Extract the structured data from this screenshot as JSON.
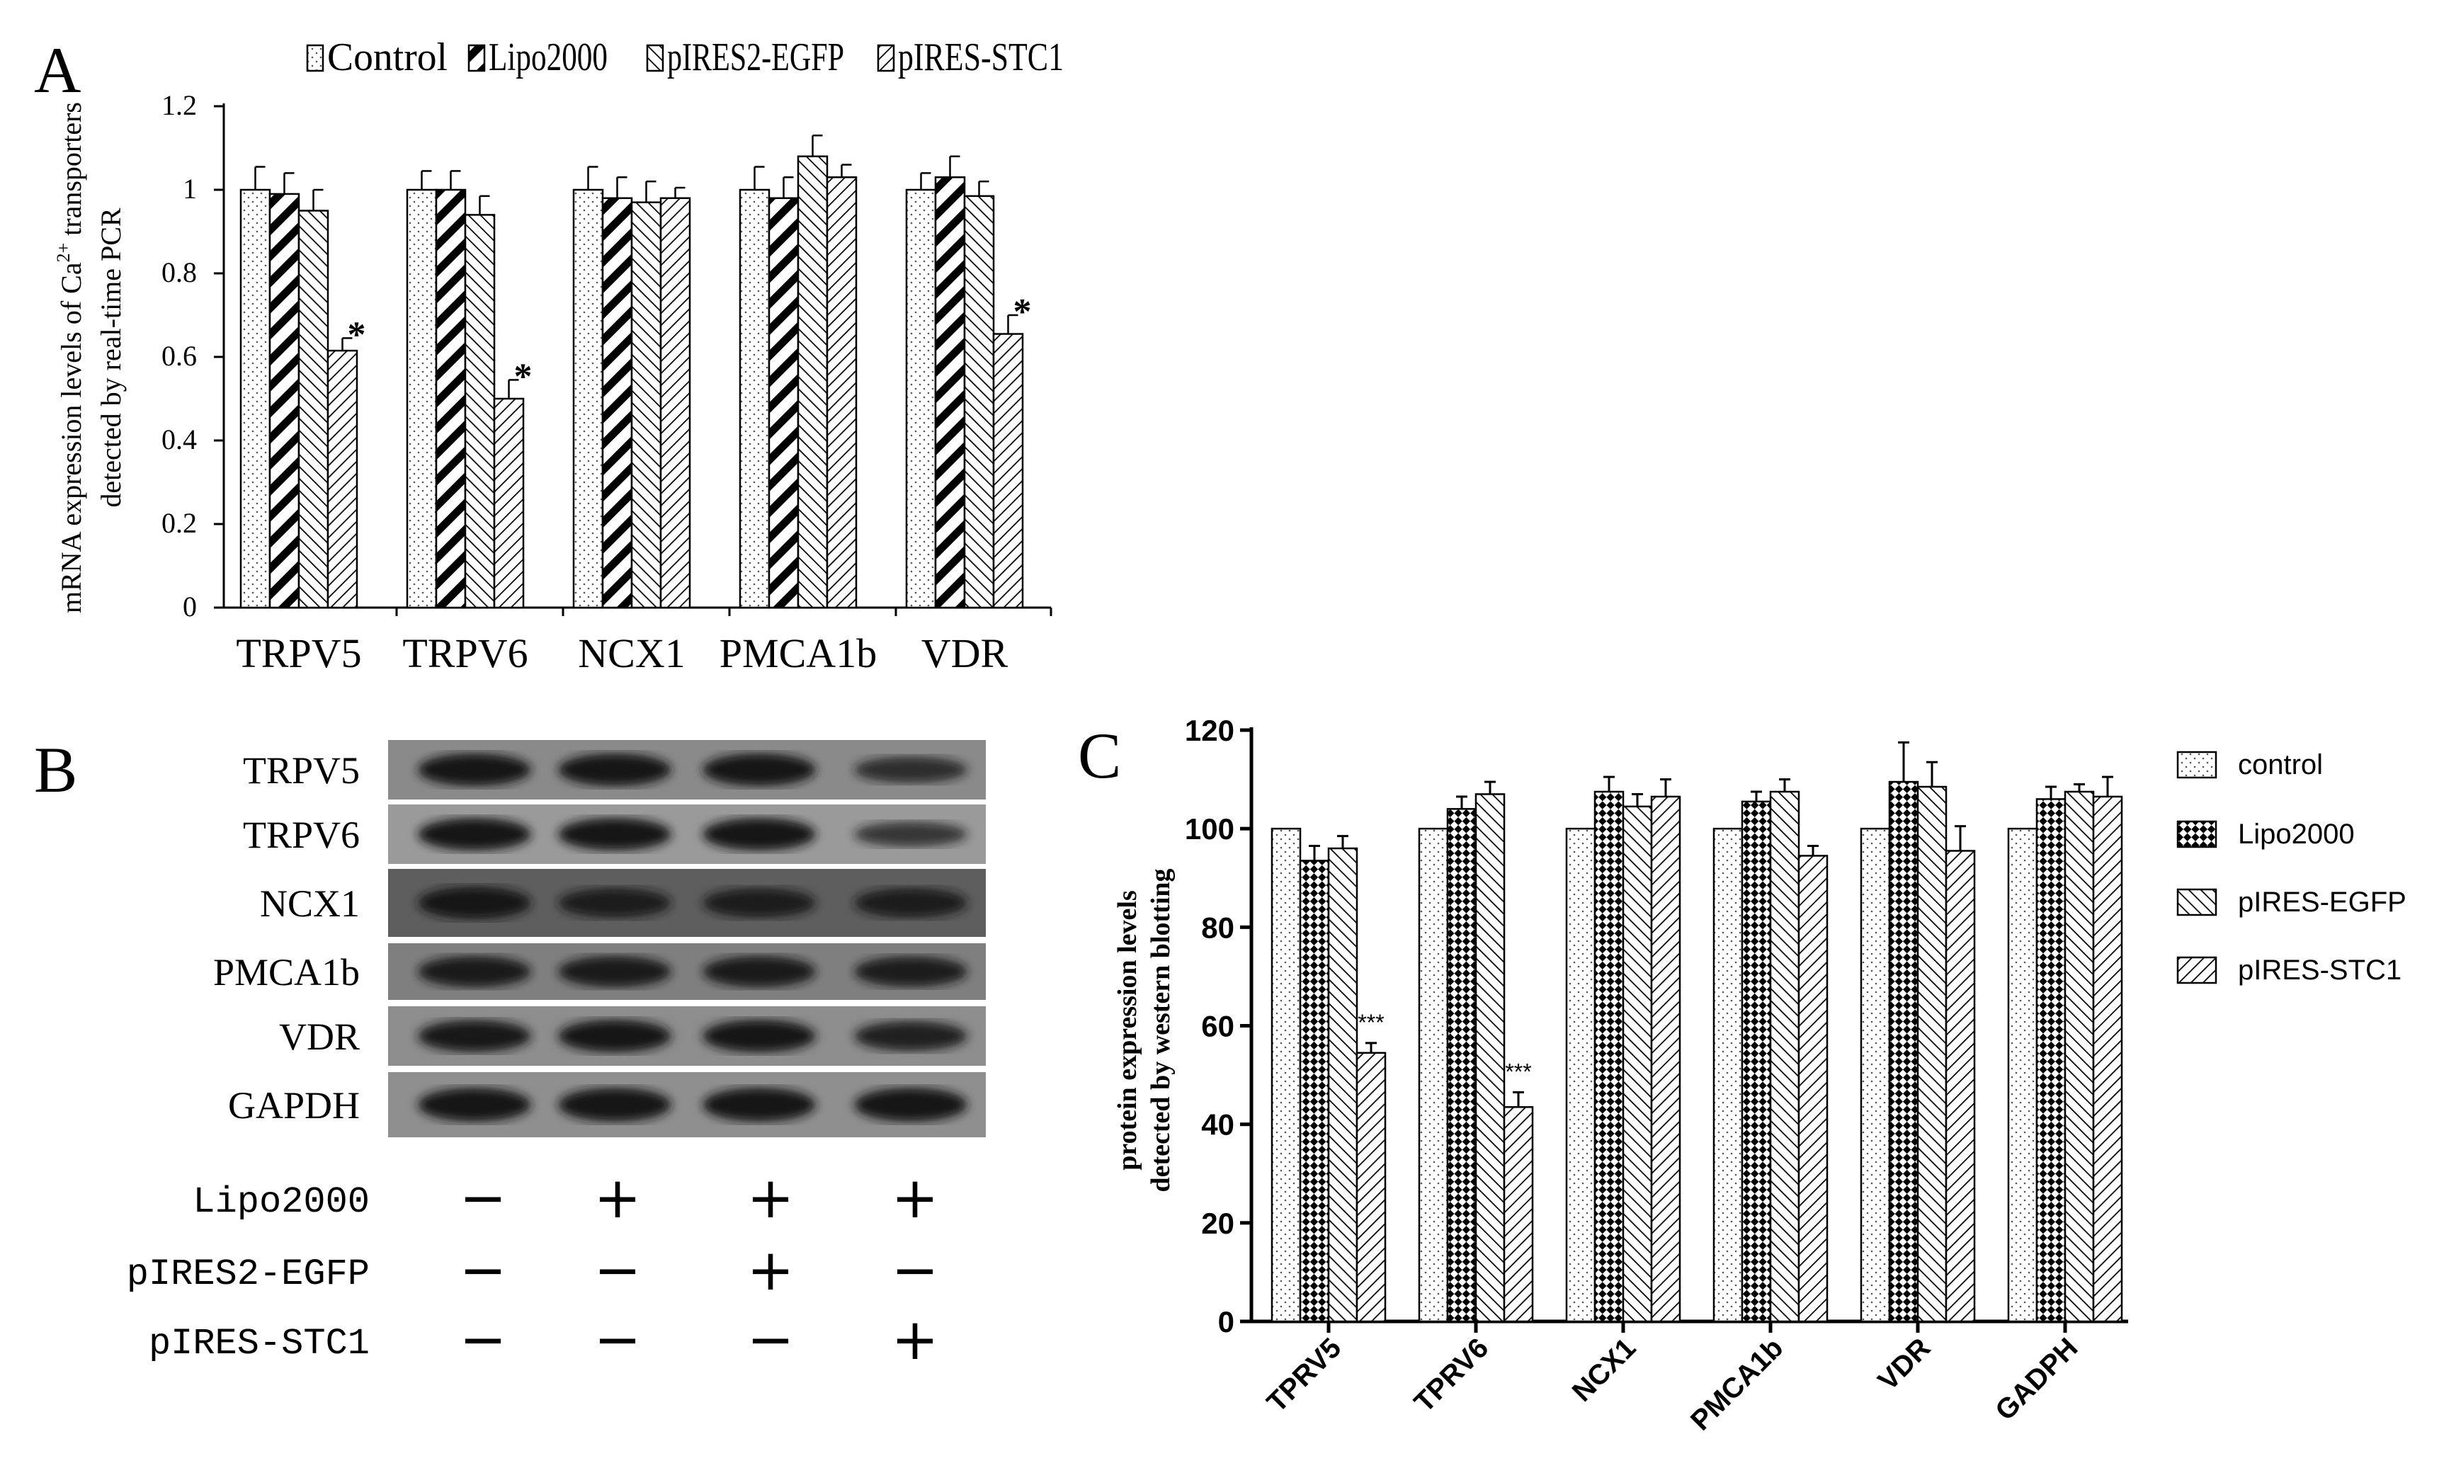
{
  "panels": {
    "a": {
      "letter": "A"
    },
    "b": {
      "letter": "B"
    },
    "c": {
      "letter": "C"
    }
  },
  "chart_data": [
    {
      "type": "bar",
      "panel": "A",
      "ylabel_line1": "mRNA expression levels of Ca",
      "ylabel_sup": "2+",
      "ylabel_line1_tail": " transporters",
      "ylabel_line2": "detected by real-time PCR",
      "ylim": [
        0,
        1.2
      ],
      "yticks": [
        "0",
        "0.2",
        "0.4",
        "0.6",
        "0.8",
        "1",
        "1.2"
      ],
      "legend_position": "top",
      "categories": [
        "TRPV5",
        "TRPV6",
        "NCX1",
        "PMCA1b",
        "VDR"
      ],
      "series": [
        {
          "name": "Control",
          "values": [
            1.0,
            1.0,
            1.0,
            1.0,
            1.0
          ],
          "errors": [
            0.055,
            0.045,
            0.055,
            0.055,
            0.04
          ]
        },
        {
          "name": "Lipo2000",
          "values": [
            0.99,
            1.0,
            0.98,
            0.98,
            1.03
          ],
          "errors": [
            0.05,
            0.045,
            0.05,
            0.05,
            0.05
          ]
        },
        {
          "name": "pIRES2-EGFP",
          "values": [
            0.95,
            0.94,
            0.97,
            1.08,
            0.985
          ],
          "errors": [
            0.05,
            0.045,
            0.05,
            0.05,
            0.035
          ]
        },
        {
          "name": "pIRES-STC1",
          "values": [
            0.615,
            0.5,
            0.98,
            1.03,
            0.655
          ],
          "errors": [
            0.03,
            0.045,
            0.025,
            0.03,
            0.045
          ]
        }
      ],
      "annotations": [
        "*",
        "*",
        "",
        "",
        "*"
      ]
    },
    {
      "type": "bar",
      "panel": "C",
      "ylabel_line1": "protein expression levels",
      "ylabel_line2": "detected by western blotting",
      "ylim": [
        0,
        120
      ],
      "yticks": [
        "0",
        "20",
        "40",
        "60",
        "80",
        "100",
        "120"
      ],
      "legend_position": "right",
      "categories": [
        "TPRV5",
        "TPRV6",
        "NCX1",
        "PMCA1b",
        "VDR",
        "GADPH"
      ],
      "series": [
        {
          "name": "control",
          "values": [
            100,
            100,
            100,
            100,
            100,
            100
          ],
          "errors": [
            0,
            0,
            0,
            0,
            0,
            0
          ]
        },
        {
          "name": "Lipo2000",
          "values": [
            93.5,
            104,
            107.5,
            105.5,
            109.5,
            106
          ],
          "errors": [
            3,
            2.5,
            3,
            2,
            8,
            2.5
          ]
        },
        {
          "name": "pIRES-EGFP",
          "values": [
            96,
            107,
            104.5,
            107.5,
            108.5,
            107.5
          ],
          "errors": [
            2.5,
            2.5,
            2.5,
            2.5,
            5,
            1.5
          ]
        },
        {
          "name": "pIRES-STC1",
          "values": [
            54.5,
            43.5,
            106.5,
            94.5,
            95.5,
            106.5
          ],
          "errors": [
            2,
            3,
            3.5,
            2,
            5,
            4
          ]
        }
      ],
      "annotations": [
        "***",
        "***",
        "",
        "",
        "",
        ""
      ]
    }
  ],
  "western_blot": {
    "bands": [
      "TRPV5",
      "TRPV6",
      "NCX1",
      "PMCA1b",
      "VDR",
      "GAPDH"
    ],
    "conditions": [
      {
        "label": "Lipo2000",
        "signs": [
          "−",
          "+",
          "+",
          "+"
        ]
      },
      {
        "label": "pIRES2-EGFP",
        "signs": [
          "−",
          "−",
          "+",
          "−"
        ]
      },
      {
        "label": "pIRES-STC1",
        "signs": [
          "−",
          "−",
          "−",
          "+"
        ]
      }
    ]
  }
}
